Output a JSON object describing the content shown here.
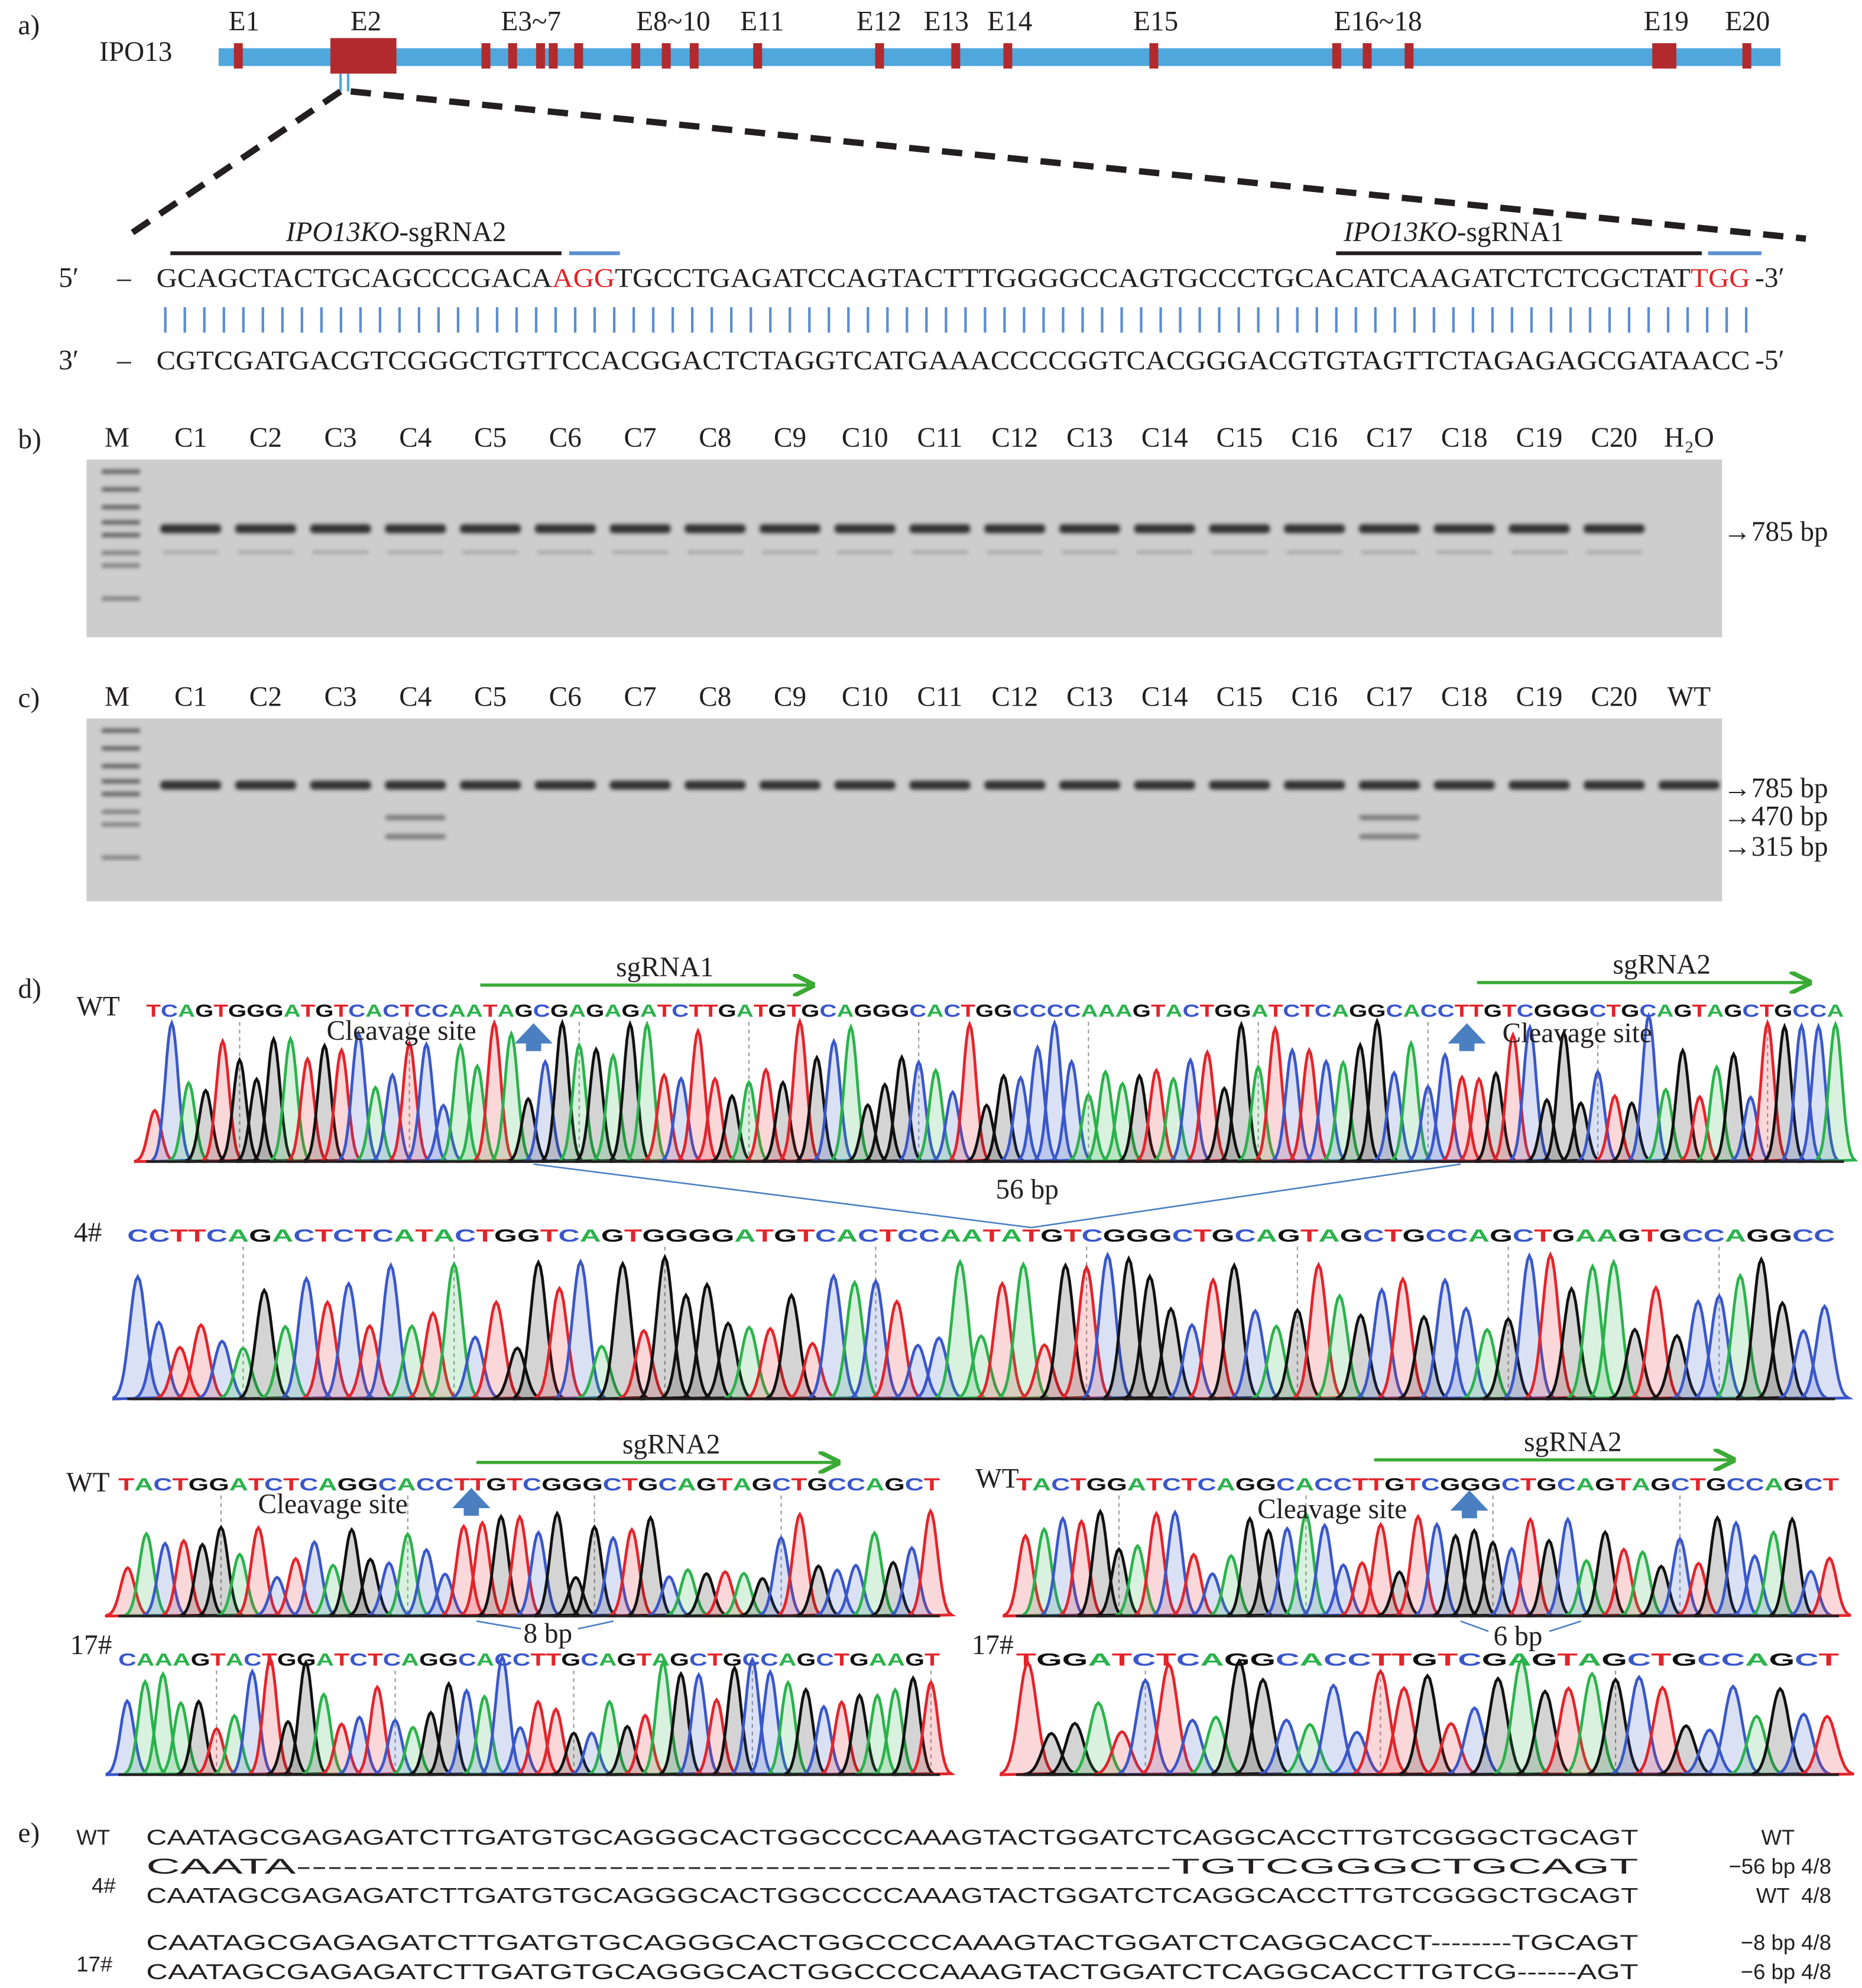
{
  "panel_labels": {
    "a": "a)",
    "b": "b)",
    "c": "c)",
    "d": "d)",
    "e": "e)"
  },
  "gene": {
    "name": "IPO13",
    "exons": [
      "E1",
      "E2",
      "E3~7",
      "E8~10",
      "E11",
      "E12",
      "E13",
      "E14",
      "E15",
      "E16~18",
      "E19",
      "E20"
    ],
    "colors": {
      "gene_body": "#4fa7dc",
      "exon": "#b22a2e",
      "pam": "#e02426",
      "pairing": "#5b8fcf",
      "arrow": "#3aaa35"
    }
  },
  "target": {
    "sgRNA2_label": {
      "italic": "IPO13KO",
      "suffix": "-sgRNA2"
    },
    "sgRNA1_label": {
      "italic": "IPO13KO",
      "suffix": "-sgRNA1"
    },
    "top": {
      "start": "5′",
      "dash": "–",
      "seq1": "GCAGCTACTGCAGCCCGACA",
      "pam1": "AGG",
      "seq2": "TGCCTGAGATCCAGTACTTTGGGGCCAGTGCCCTGCACATCAAGATCTCTCGCTAT",
      "pam2": "TGG",
      "end": "-3′"
    },
    "bottom": {
      "start": "3′",
      "dash": "–",
      "seq": "CGTCGATGACGTCGGGCTGTTCCACGGACTCTAGGTCATGAAACCCCGGTCACGGGACGTGTAGTTCTAGAGAGCGATAACC",
      "end": "-5′"
    }
  },
  "gel_b": {
    "marker": "M",
    "lanes": [
      "C1",
      "C2",
      "C3",
      "C4",
      "C5",
      "C6",
      "C7",
      "C8",
      "C9",
      "C10",
      "C11",
      "C12",
      "C13",
      "C14",
      "C15",
      "C16",
      "C17",
      "C18",
      "C19",
      "C20"
    ],
    "control": "H₂O",
    "bands": [
      "→785 bp"
    ],
    "lane_bands": [
      [
        "785"
      ],
      [
        "785"
      ],
      [
        "785"
      ],
      [
        "785"
      ],
      [
        "785"
      ],
      [
        "785"
      ],
      [
        "785"
      ],
      [
        "785"
      ],
      [
        "785"
      ],
      [
        "785"
      ],
      [
        "785"
      ],
      [
        "785"
      ],
      [
        "785"
      ],
      [
        "785"
      ],
      [
        "785"
      ],
      [
        "785"
      ],
      [
        "785"
      ],
      [
        "785"
      ],
      [
        "785"
      ],
      [
        "785"
      ],
      []
    ]
  },
  "gel_c": {
    "marker": "M",
    "lanes": [
      "C1",
      "C2",
      "C3",
      "C4",
      "C5",
      "C6",
      "C7",
      "C8",
      "C9",
      "C10",
      "C11",
      "C12",
      "C13",
      "C14",
      "C15",
      "C16",
      "C17",
      "C18",
      "C19",
      "C20"
    ],
    "control": "WT",
    "bands": [
      "→785 bp",
      "→470 bp",
      "→315 bp"
    ],
    "lane_bands": [
      [
        "785"
      ],
      [
        "785"
      ],
      [
        "785"
      ],
      [
        "785",
        "470",
        "315"
      ],
      [
        "785"
      ],
      [
        "785"
      ],
      [
        "785"
      ],
      [
        "785"
      ],
      [
        "785"
      ],
      [
        "785"
      ],
      [
        "785"
      ],
      [
        "785"
      ],
      [
        "785"
      ],
      [
        "785"
      ],
      [
        "785"
      ],
      [
        "785"
      ],
      [
        "785",
        "470",
        "315"
      ],
      [
        "785"
      ],
      [
        "785"
      ],
      [
        "785"
      ],
      [
        "785"
      ]
    ]
  },
  "chromatograms": {
    "base_colors": {
      "A": "#2bb24c",
      "C": "#3a57c9",
      "G": "#111111",
      "T": "#e3242b"
    },
    "cleavage_label": "Cleavage site",
    "sgRNA1": "sgRNA1",
    "sgRNA2": "sgRNA2",
    "top": {
      "wt_label": "WT",
      "wt_seq": "TCAGTGGGATGTCACTCCAATAGCGAGAGATCTTGATGTGCAGGGCACTGGCCCCAAAGTACTGGATCTCAGGCACCTTGTCGGGCTGCAGTAGCTGCCA",
      "deletion": "56 bp",
      "clone_label": "4#",
      "clone_seq": "CCTTCAGACTCTCATACTGGTCAGTGGGGATGTCACTCCAATATGTCGGGCTGCAGTAGCTGCCAGCTGAAGTGCCAGGCC"
    },
    "left": {
      "wt_label": "WT",
      "wt_seq": "TACTGGATCTCAGGCACCTTGTCGGGCTGCAGTAGCTGCCAGCT",
      "deletion": "8 bp",
      "clone_label": "17#",
      "clone_seq": "CAAAGTACTGGATCTCAGGCACCTTGCAGTAGCTGCCAGCTGAAGT"
    },
    "right": {
      "wt_label": "WT",
      "wt_seq": "TACTGGATCTCAGGCACCTTGTCGGGCTGCAGTAGCTGCCAGCT",
      "deletion": "6 bp",
      "clone_label": "17#",
      "clone_seq": "TGGATCTCAGGCACCTTGTCGAGTAGCTGCCAGCT"
    }
  },
  "alignment": {
    "wt": {
      "label": "WT",
      "seq": "CAATAGCGAGAGATCTTGATGTGCAGGGCACTGGCCCCAAAGTACTGGATCTCAGGCACCTTGTCGGGCTGCAGT",
      "note": "WT"
    },
    "clone4": {
      "label": "4#",
      "rows": [
        {
          "seq": "CAATA--------------------------------------------------------TGTCGGGCTGCAGT",
          "note": "−56 bp 4/8"
        },
        {
          "seq": "CAATAGCGAGAGATCTTGATGTGCAGGGCACTGGCCCCAAAGTACTGGATCTCAGGCACCTTGTCGGGCTGCAGT",
          "note": "WT  4/8"
        }
      ]
    },
    "clone17": {
      "label": "17#",
      "rows": [
        {
          "seq": "CAATAGCGAGAGATCTTGATGTGCAGGGCACTGGCCCCAAAGTACTGGATCTCAGGCACCT--------TGCAGT",
          "note": "−8 bp 4/8"
        },
        {
          "seq": "CAATAGCGAGAGATCTTGATGTGCAGGGCACTGGCCCCAAAGTACTGGATCTCAGGCACCTTGTCG------AGT",
          "note": "−6 bp 4/8"
        }
      ]
    }
  }
}
